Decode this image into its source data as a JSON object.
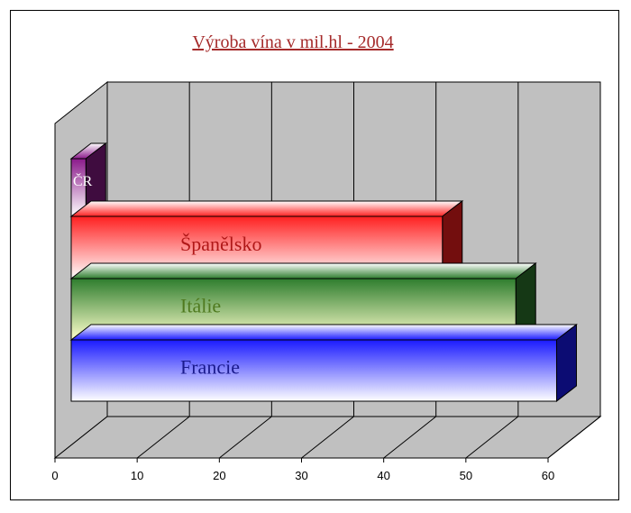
{
  "chart_data": {
    "type": "bar",
    "orientation": "horizontal",
    "style": "3d",
    "title": "Výroba vína v mil.hl - 2004",
    "categories": [
      "ČR",
      "Španělsko",
      "Itálie",
      "Francie"
    ],
    "values": [
      1.8,
      45.5,
      54.5,
      59.5
    ],
    "xlabel": "",
    "ylabel": "",
    "xlim": [
      0,
      60
    ],
    "xticks": [
      0,
      10,
      20,
      30,
      40,
      50,
      60
    ],
    "grid": true,
    "legend": "none",
    "colors": {
      "ČR": "#8b1a8b",
      "Španělsko": "#ff2020",
      "Itálie": "#2e7d2e",
      "Francie": "#1a1aff",
      "title": "#a52a2a"
    },
    "label_colors": {
      "ČR": "#ffffff",
      "Španělsko": "#b01818",
      "Itálie": "#4f7a1f",
      "Francie": "#1a1a8c"
    }
  }
}
